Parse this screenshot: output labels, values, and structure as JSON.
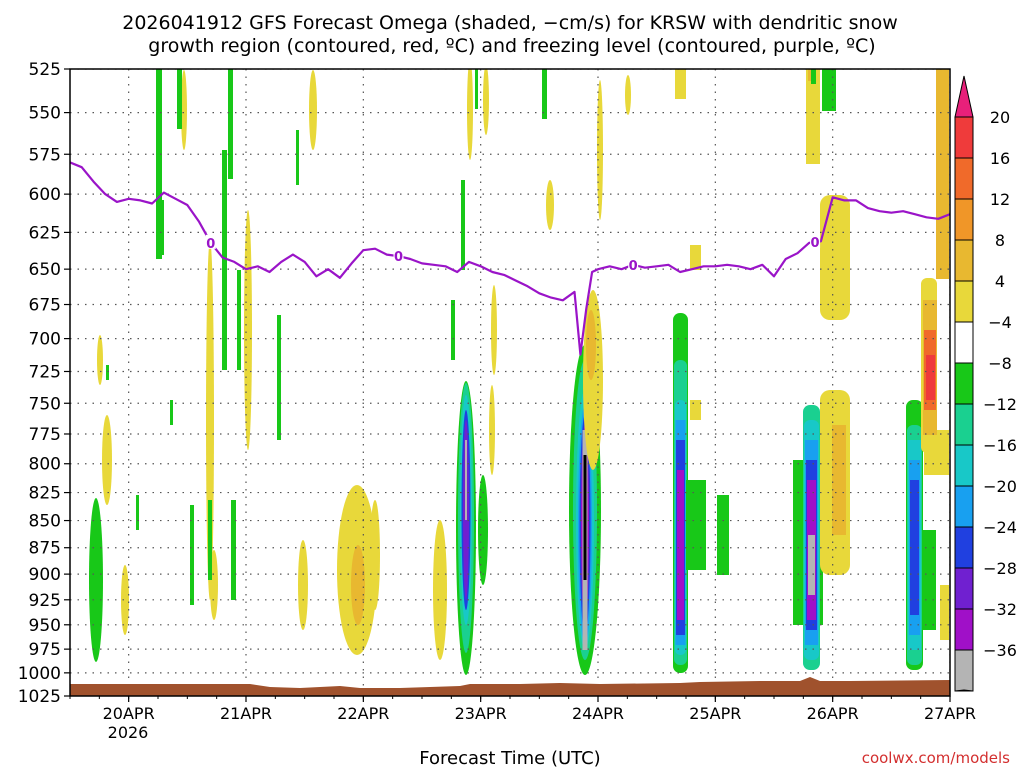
{
  "chart_data": {
    "type": "heatmap",
    "title_line1": "2026041912 GFS Forecast Omega (shaded, −cm/s) for KRSW with dendritic snow",
    "title_line2": "growth region (contoured, red, ºC) and freezing level (contoured, purple, ºC)",
    "xlabel": "Forecast Time (UTC)",
    "credit": "coolwx.com/models",
    "year_label": "2026",
    "x_ticks": [
      {
        "day": 20,
        "label": "20APR"
      },
      {
        "day": 21,
        "label": "21APR"
      },
      {
        "day": 22,
        "label": "22APR"
      },
      {
        "day": 23,
        "label": "23APR"
      },
      {
        "day": 24,
        "label": "24APR"
      },
      {
        "day": 25,
        "label": "25APR"
      },
      {
        "day": 26,
        "label": "26APR"
      },
      {
        "day": 27,
        "label": "27APR"
      }
    ],
    "xlim": [
      19.5,
      27.0
    ],
    "ylim": [
      1025,
      525
    ],
    "y_scale": "log-pressure (inverted)",
    "y_ticks": [
      525,
      550,
      575,
      600,
      625,
      650,
      675,
      700,
      725,
      750,
      775,
      800,
      825,
      850,
      875,
      900,
      925,
      950,
      975,
      1000,
      1025
    ],
    "grid": "dotted",
    "colorbar": {
      "labels": [
        "20",
        "16",
        "12",
        "8",
        "4",
        "−4",
        "−8",
        "−12",
        "−16",
        "−20",
        "−24",
        "−28",
        "−32",
        "−36"
      ],
      "colors": [
        "#e8207a",
        "#ef3b3b",
        "#f06a2a",
        "#f09628",
        "#e8b830",
        "#e8d83a",
        "#ffffff",
        "#18c818",
        "#1ad090",
        "#18c8c8",
        "#18a0f0",
        "#2040e0",
        "#7020d0",
        "#a010c8",
        "#b4b4b4",
        "#000000"
      ]
    },
    "freezing_level": {
      "label": "0",
      "color": "#9a14c8",
      "points": [
        [
          19.5,
          580
        ],
        [
          19.6,
          583
        ],
        [
          19.7,
          592
        ],
        [
          19.8,
          600
        ],
        [
          19.9,
          605
        ],
        [
          20.0,
          603
        ],
        [
          20.1,
          604
        ],
        [
          20.2,
          606
        ],
        [
          20.3,
          599
        ],
        [
          20.4,
          603
        ],
        [
          20.5,
          607
        ],
        [
          20.6,
          618
        ],
        [
          20.7,
          632
        ],
        [
          20.8,
          642
        ],
        [
          20.9,
          645
        ],
        [
          21.0,
          650
        ],
        [
          21.1,
          648
        ],
        [
          21.2,
          652
        ],
        [
          21.3,
          645
        ],
        [
          21.4,
          640
        ],
        [
          21.5,
          645
        ],
        [
          21.6,
          655
        ],
        [
          21.7,
          650
        ],
        [
          21.8,
          656
        ],
        [
          21.9,
          646
        ],
        [
          22.0,
          637
        ],
        [
          22.1,
          636
        ],
        [
          22.2,
          640
        ],
        [
          22.3,
          641
        ],
        [
          22.4,
          643
        ],
        [
          22.5,
          646
        ],
        [
          22.6,
          647
        ],
        [
          22.7,
          648
        ],
        [
          22.8,
          652
        ],
        [
          22.9,
          645
        ],
        [
          23.0,
          648
        ],
        [
          23.1,
          652
        ],
        [
          23.2,
          654
        ],
        [
          23.3,
          658
        ],
        [
          23.4,
          662
        ],
        [
          23.5,
          667
        ],
        [
          23.6,
          670
        ],
        [
          23.7,
          672
        ],
        [
          23.8,
          666
        ],
        [
          23.85,
          712
        ],
        [
          23.9,
          678
        ],
        [
          23.95,
          652
        ],
        [
          24.0,
          650
        ],
        [
          24.1,
          648
        ],
        [
          24.2,
          650
        ],
        [
          24.3,
          647
        ],
        [
          24.4,
          649
        ],
        [
          24.5,
          648
        ],
        [
          24.6,
          647
        ],
        [
          24.7,
          652
        ],
        [
          24.8,
          650
        ],
        [
          24.9,
          648
        ],
        [
          25.0,
          648
        ],
        [
          25.1,
          647
        ],
        [
          25.2,
          648
        ],
        [
          25.3,
          650
        ],
        [
          25.4,
          647
        ],
        [
          25.5,
          655
        ],
        [
          25.6,
          643
        ],
        [
          25.7,
          639
        ],
        [
          25.8,
          632
        ],
        [
          25.9,
          631
        ],
        [
          26.0,
          602
        ],
        [
          26.1,
          604
        ],
        [
          26.2,
          604
        ],
        [
          26.3,
          609
        ],
        [
          26.4,
          611
        ],
        [
          26.5,
          612
        ],
        [
          26.6,
          611
        ],
        [
          26.7,
          613
        ],
        [
          26.8,
          615
        ],
        [
          26.9,
          616
        ],
        [
          27.0,
          613
        ]
      ]
    },
    "omega_regions": [
      {
        "name": "upward-motion-23apr",
        "t": 22.9,
        "p_top": 725,
        "p_bottom": 1005,
        "peak": -32
      },
      {
        "name": "upward-motion-24apr",
        "t": 23.9,
        "p_top": 710,
        "p_bottom": 1005,
        "peak": -36
      },
      {
        "name": "upward-motion-25apr",
        "t": 24.75,
        "p_top": 685,
        "p_bottom": 1005,
        "peak": -28
      },
      {
        "name": "upward-motion-26apr",
        "t": 25.85,
        "p_top": 750,
        "p_bottom": 1005,
        "peak": -32
      },
      {
        "name": "upward-motion-27apr",
        "t": 26.8,
        "p_top": 750,
        "p_bottom": 1000,
        "peak": -24
      },
      {
        "name": "sinking-27apr-upper",
        "t": 26.95,
        "p_top": 680,
        "p_bottom": 800,
        "peak": 16
      },
      {
        "name": "sinking-26apr",
        "t": 26.05,
        "p_top": 740,
        "p_bottom": 860,
        "peak": 12
      },
      {
        "name": "sinking-22apr",
        "t": 21.98,
        "p_top": 830,
        "p_bottom": 980,
        "peak": 12
      }
    ]
  }
}
